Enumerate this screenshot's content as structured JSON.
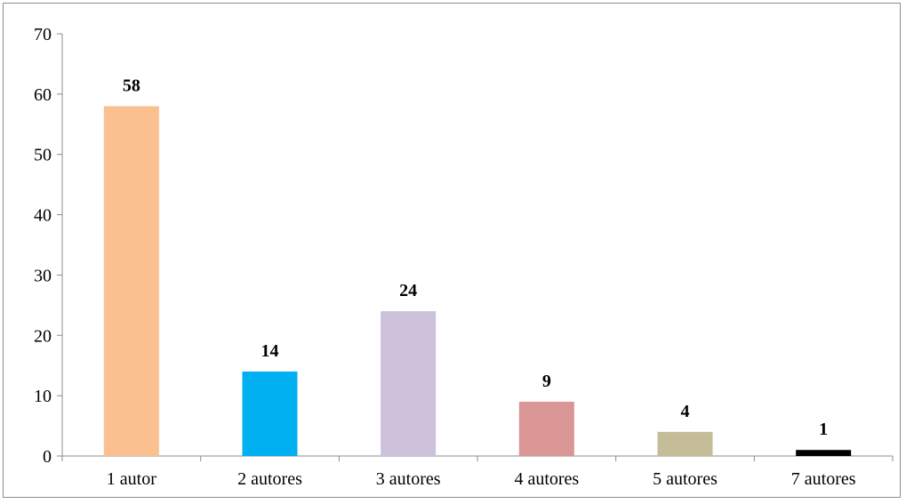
{
  "chart_data": {
    "type": "bar",
    "categories": [
      "1 autor",
      "2 autores",
      "3 autores",
      "4 autores",
      "5 autores",
      "7 autores"
    ],
    "values": [
      58,
      14,
      24,
      9,
      4,
      1
    ],
    "colors": [
      "#FAC090",
      "#00B0F0",
      "#CCC0DA",
      "#D99694",
      "#C4BD97",
      "#000000"
    ],
    "data_labels": [
      "58",
      "14",
      "24",
      "9",
      "4",
      "1"
    ],
    "title": "",
    "xlabel": "",
    "ylabel": "",
    "ylim": [
      0,
      70
    ],
    "yticks": [
      "0",
      "10",
      "20",
      "30",
      "40",
      "50",
      "60",
      "70"
    ],
    "grid": false,
    "legend": "none"
  }
}
